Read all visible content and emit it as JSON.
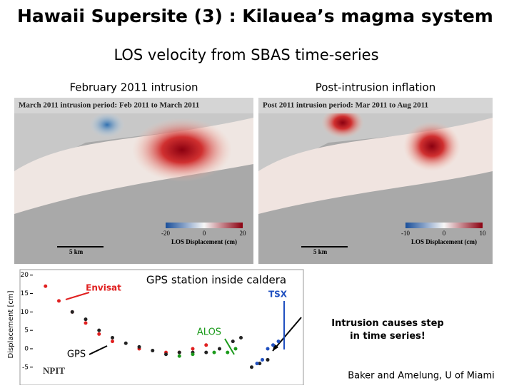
{
  "header": {
    "title": "Hawaii Supersite (3) : Kilauea’s magma system",
    "subtitle": "LOS velocity from SBAS time-series"
  },
  "panels": [
    {
      "label": "February  2011 intrusion",
      "map_title": "March 2011 intrusion period: Feb 2011 to March 2011",
      "colorbar": {
        "ticks": [
          -20,
          0,
          20
        ],
        "label": "LOS Displacement (cm)"
      },
      "scale": "5 km"
    },
    {
      "label": "Post-intrusion inflation",
      "map_title": "Post 2011 intrusion period: Mar 2011 to Aug 2011",
      "colorbar": {
        "ticks": [
          -10,
          0,
          10
        ],
        "label": "LOS Displacement (cm)"
      },
      "scale": "5 km"
    }
  ],
  "gps_plot": {
    "title": "GPS station  inside caldera",
    "ylabel": "Displacement [cm]",
    "station": "NPIT",
    "ylim": [
      -9.5,
      21.5
    ],
    "yticks": [
      20,
      15,
      10,
      5,
      0,
      -5
    ],
    "xlim": [
      0,
      100
    ],
    "series": [
      {
        "name": "Envisat",
        "color": "#e02020",
        "x": [
          5,
          10,
          15,
          20,
          25,
          30,
          40,
          50,
          55,
          60,
          65
        ],
        "values": [
          17,
          13,
          10,
          7,
          4,
          2,
          0,
          -1,
          -1,
          0,
          1
        ]
      },
      {
        "name": "GPS",
        "color": "#222222",
        "x": [
          15,
          20,
          25,
          30,
          35,
          40,
          45,
          50,
          55,
          60,
          65,
          70,
          75,
          78,
          82,
          85,
          88
        ],
        "values": [
          10,
          8,
          5,
          3,
          1.5,
          0.5,
          -0.5,
          -1.5,
          -1,
          -1,
          -1,
          0,
          2,
          3,
          -5,
          -4,
          -3
        ]
      },
      {
        "name": "ALOS",
        "color": "#1a9a1a",
        "x": [
          55,
          60,
          68,
          73,
          76
        ],
        "values": [
          -2,
          -1.5,
          -1,
          -1,
          0
        ]
      },
      {
        "name": "TSX",
        "color": "#2050c0",
        "x": [
          84,
          86,
          88,
          90,
          92
        ],
        "values": [
          -4,
          -3,
          0,
          1,
          2
        ]
      }
    ]
  },
  "note": "Intrusion causes step in time series!",
  "credit": "Baker and Amelung, U of Miami"
}
